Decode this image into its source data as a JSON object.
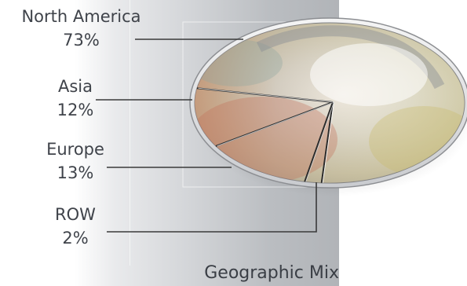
{
  "chart_data": {
    "type": "pie",
    "title": "Geographic Mix",
    "slices": [
      {
        "label": "North America",
        "value": 73,
        "value_label": "73%"
      },
      {
        "label": "Asia",
        "value": 12,
        "value_label": "12%"
      },
      {
        "label": "Europe",
        "value": 13,
        "value_label": "13%"
      },
      {
        "label": "ROW",
        "value": 2,
        "value_label": "2%"
      }
    ],
    "style": "3D tilted glass pie with photographic texture, leader lines to labels on the left"
  }
}
